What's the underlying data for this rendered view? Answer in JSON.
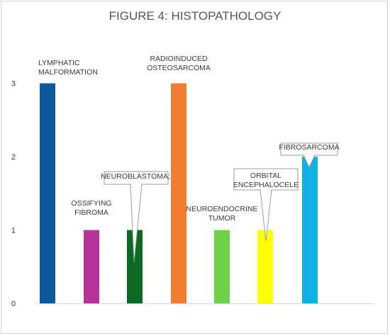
{
  "chart_data": {
    "type": "bar",
    "title": "FIGURE 4: HISTOPATHOLOGY",
    "xlabel": "",
    "ylabel": "",
    "ylim": [
      0,
      3
    ],
    "yticks": [
      0,
      1,
      2,
      3
    ],
    "grid": false,
    "legend": "none",
    "categories": [
      "LYMPHATIC MALFORMATION",
      "OSSIFYING FIBROMA",
      "NEUROBLASTOMA;",
      "RADIOINDUCED OSTEOSARCOMA",
      "NEUROENDOCRINE TUMOR",
      "ORBITAL ENCEPHALOCELE",
      "FIBROSARCOMA"
    ],
    "values": [
      3,
      1,
      1,
      3,
      1,
      1,
      2
    ],
    "colors": [
      "#0e5a9c",
      "#b5329b",
      "#0b6b22",
      "#f47b2f",
      "#6fd14a",
      "#ffff00",
      "#0fb1e3"
    ],
    "labels": [
      {
        "lines": [
          "LYMPHATIC",
          "MALFORMATION"
        ],
        "callout": false
      },
      {
        "lines": [
          "OSSIFYING",
          "FIBROMA"
        ],
        "callout": false
      },
      {
        "lines": [
          "NEUROBLASTOMA;"
        ],
        "callout": true
      },
      {
        "lines": [
          "RADIOINDUCED",
          "OSTEOSARCOMA"
        ],
        "callout": false
      },
      {
        "lines": [
          "NEUROENDOCRINE",
          "TUMOR"
        ],
        "callout": false
      },
      {
        "lines": [
          "ORBITAL",
          "ENCEPHALOCELE"
        ],
        "callout": true
      },
      {
        "lines": [
          "FIBROSARCOMA"
        ],
        "callout": true
      }
    ]
  }
}
